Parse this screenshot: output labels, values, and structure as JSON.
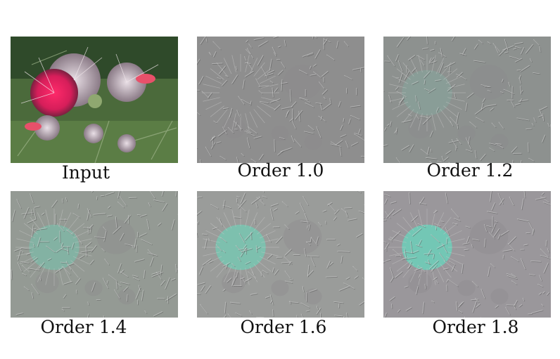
{
  "figure": {
    "panels": [
      {
        "caption": "Input",
        "kind": "photo",
        "tint": "#7a8a6c",
        "accent": "#d9286a"
      },
      {
        "caption": "Order 1.0",
        "kind": "emboss",
        "tint": "#8e8e8e",
        "accent": "#8e8e8e",
        "accent_strength": 0.0
      },
      {
        "caption": "Order 1.2",
        "kind": "emboss",
        "tint": "#8d918f",
        "accent": "#7fc4b0",
        "accent_strength": 0.25
      },
      {
        "caption": "Order 1.4",
        "kind": "emboss",
        "tint": "#949a94",
        "accent": "#6fd1b5",
        "accent_strength": 0.45
      },
      {
        "caption": "Order 1.6",
        "kind": "emboss",
        "tint": "#9a9c9a",
        "accent": "#6ad8bd",
        "accent_strength": 0.6
      },
      {
        "caption": "Order 1.8",
        "kind": "emboss",
        "tint": "#9a979b",
        "accent": "#62dcc0",
        "accent_strength": 0.7
      }
    ]
  }
}
